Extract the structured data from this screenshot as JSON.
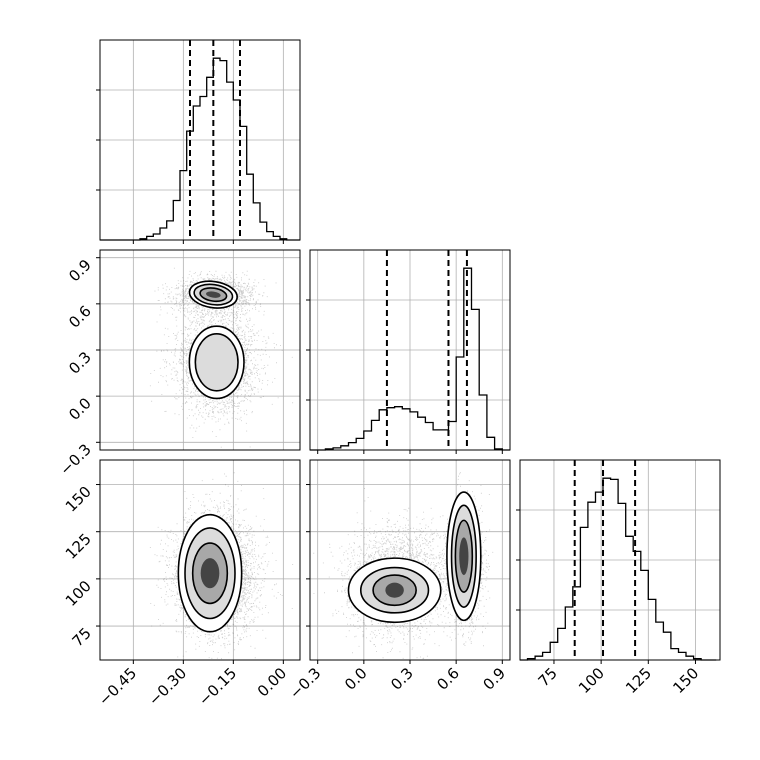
{
  "chart_data": {
    "type": "corner",
    "grid": true,
    "parameters": [
      {
        "name": "",
        "ticks": [
          -0.45,
          -0.3,
          -0.15,
          0.0
        ],
        "ticklabels": [
          "−0.45",
          "−0.30",
          "−0.15",
          "0.00"
        ],
        "range": [
          -0.55,
          0.05
        ],
        "quantiles": [
          -0.28,
          -0.21,
          -0.13
        ]
      },
      {
        "name": "",
        "ticks": [
          -0.3,
          0.0,
          0.3,
          0.6,
          0.9
        ],
        "ticklabels": [
          "−0.3",
          "0.0",
          "0.3",
          "0.6",
          "0.9"
        ],
        "range": [
          -0.35,
          0.95
        ],
        "quantiles": [
          0.15,
          0.55,
          0.67
        ]
      },
      {
        "name": "",
        "ticks": [
          75,
          100,
          125,
          150
        ],
        "ticklabels": [
          "75",
          "100",
          "125",
          "150"
        ],
        "range": [
          57,
          163
        ],
        "quantiles": [
          86,
          101,
          118
        ]
      }
    ],
    "histograms": [
      {
        "param": 0,
        "edges": [
          -0.55,
          -0.53,
          -0.51,
          -0.49,
          -0.47,
          -0.45,
          -0.43,
          -0.41,
          -0.39,
          -0.37,
          -0.35,
          -0.33,
          -0.31,
          -0.29,
          -0.27,
          -0.25,
          -0.23,
          -0.21,
          -0.19,
          -0.17,
          -0.15,
          -0.13,
          -0.11,
          -0.09,
          -0.07,
          -0.05,
          -0.03,
          -0.01,
          0.01,
          0.03,
          0.05
        ],
        "counts": [
          0,
          0,
          0,
          0,
          0,
          0,
          1,
          3,
          5,
          10,
          16,
          33,
          58,
          91,
          112,
          120,
          136,
          152,
          150,
          132,
          117,
          95,
          55,
          31,
          15,
          7,
          3,
          1,
          0,
          0
        ]
      },
      {
        "param": 1,
        "edges": [
          -0.35,
          -0.3,
          -0.25,
          -0.2,
          -0.15,
          -0.1,
          -0.05,
          0.0,
          0.05,
          0.1,
          0.15,
          0.2,
          0.25,
          0.3,
          0.35,
          0.4,
          0.45,
          0.5,
          0.55,
          0.6,
          0.65,
          0.7,
          0.75,
          0.8,
          0.85,
          0.9,
          0.95
        ],
        "counts": [
          0,
          0,
          1,
          2,
          4,
          7,
          11,
          18,
          28,
          38,
          40,
          41,
          39,
          36,
          31,
          26,
          19,
          19,
          27,
          88,
          172,
          133,
          52,
          12,
          1,
          0
        ]
      },
      {
        "param": 2,
        "edges": [
          57,
          61,
          65,
          69,
          73,
          77,
          81,
          85,
          89,
          93,
          97,
          101,
          105,
          109,
          113,
          117,
          121,
          125,
          129,
          133,
          137,
          141,
          145,
          149,
          153,
          157,
          161
        ],
        "counts": [
          0,
          1,
          3,
          6,
          14,
          25,
          42,
          58,
          105,
          125,
          133,
          144,
          143,
          124,
          98,
          86,
          71,
          48,
          30,
          22,
          9,
          6,
          3,
          1,
          0,
          0
        ]
      }
    ],
    "scatter_2d": [
      {
        "x": 0,
        "y": 1,
        "description_modes": [
          {
            "x": -0.21,
            "y": 0.66
          },
          {
            "x": -0.2,
            "y": 0.22
          }
        ]
      },
      {
        "x": 0,
        "y": 2,
        "description_modes": [
          {
            "x": -0.22,
            "y": 103
          }
        ]
      },
      {
        "x": 1,
        "y": 2,
        "description_modes": [
          {
            "x": 0.2,
            "y": 94
          },
          {
            "x": 0.65,
            "y": 112
          }
        ]
      }
    ]
  }
}
